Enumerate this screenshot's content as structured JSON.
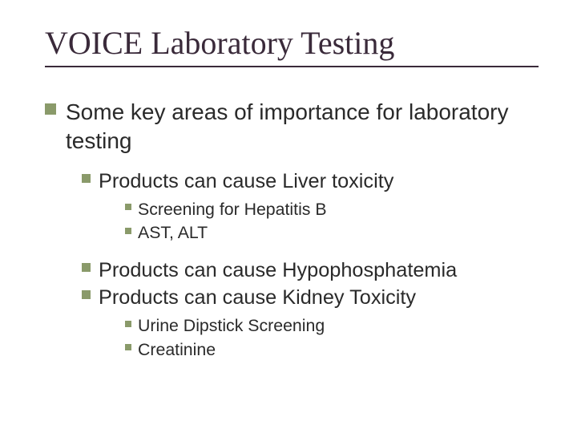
{
  "colors": {
    "background": "#ffffff",
    "title": "#3a2a3a",
    "underline": "#3a2a3a",
    "body_text": "#2a2a2a",
    "bullet": "#8a9a6a"
  },
  "typography": {
    "title_family": "Times New Roman",
    "title_fontsize_pt": 30,
    "body_family": "Arial",
    "lvl1_fontsize_pt": 21,
    "lvl2_fontsize_pt": 19,
    "lvl3_fontsize_pt": 16
  },
  "title": "VOICE Laboratory Testing",
  "lvl1": {
    "item1": "Some key areas of importance for laboratory testing"
  },
  "lvl2": {
    "item1": "Products can cause Liver toxicity",
    "item2": "Products can cause Hypophosphatemia",
    "item3": "Products can cause Kidney Toxicity"
  },
  "lvl3": {
    "a1": "Screening for Hepatitis B",
    "a2": "AST, ALT",
    "b1": "Urine Dipstick Screening",
    "b2": "Creatinine"
  }
}
